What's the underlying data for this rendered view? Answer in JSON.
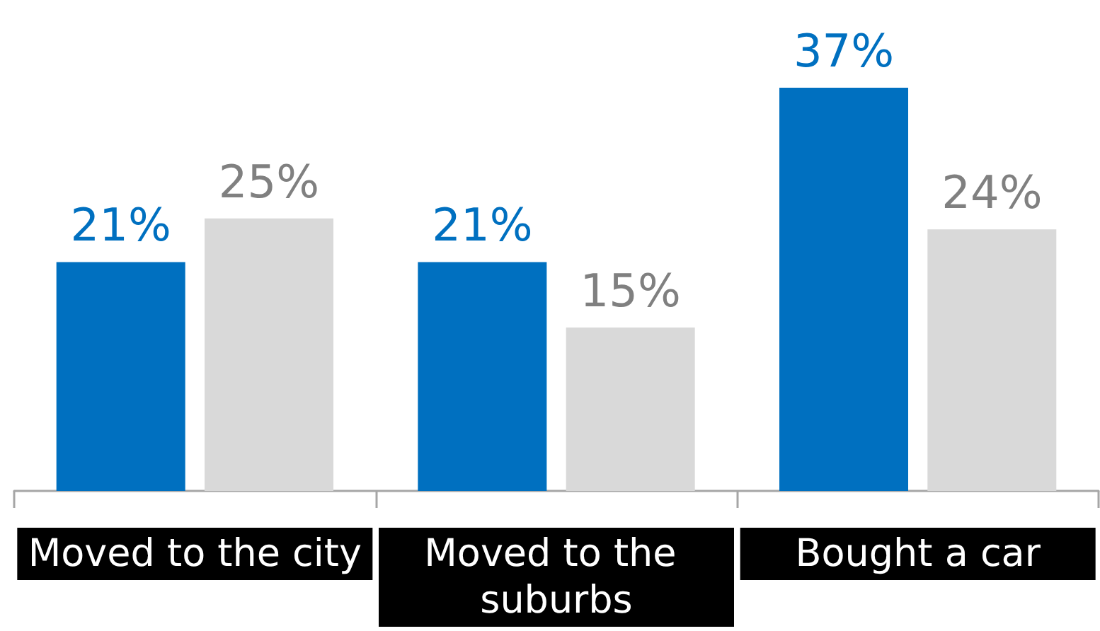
{
  "chart_data": {
    "type": "bar",
    "categories": [
      "Moved to the city",
      "Moved to the suburbs",
      "Bought a car"
    ],
    "series": [
      {
        "color": "#0070c0",
        "values": [
          21,
          21,
          37
        ],
        "value_labels": [
          "21%",
          "21%",
          "37%"
        ]
      },
      {
        "color": "#d9d9d9",
        "values": [
          25,
          15,
          24
        ],
        "value_labels": [
          "25%",
          "15%",
          "24%"
        ]
      }
    ]
  }
}
